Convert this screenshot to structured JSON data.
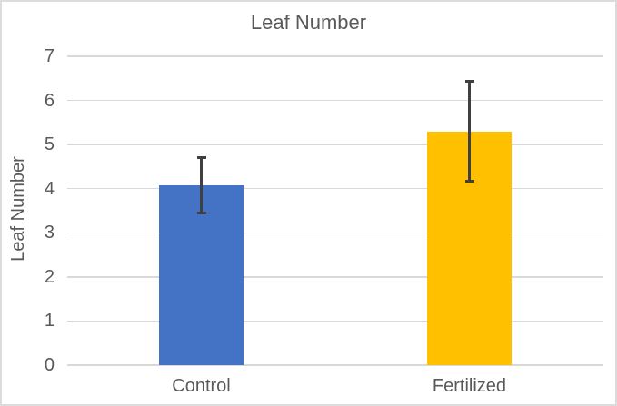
{
  "chart_data": {
    "type": "bar",
    "title": "Leaf Number",
    "xlabel": "",
    "ylabel": "Leaf Number",
    "categories": [
      "Control",
      "Fertilized"
    ],
    "values": [
      4.07,
      5.3
    ],
    "error_plus": [
      0.65,
      1.15
    ],
    "error_minus": [
      0.64,
      1.15
    ],
    "ylim": [
      0,
      7
    ],
    "yticks": [
      0,
      1,
      2,
      3,
      4,
      5,
      6,
      7
    ],
    "grid": true,
    "legend": false,
    "bar_colors": [
      "#4472C4",
      "#FFC000"
    ],
    "error_bar_color": "#404040",
    "gridline_color": "#D9D9D9",
    "axis_line_color": "#D9D9D9",
    "text_color": "#595959",
    "background": "#FFFFFF"
  }
}
